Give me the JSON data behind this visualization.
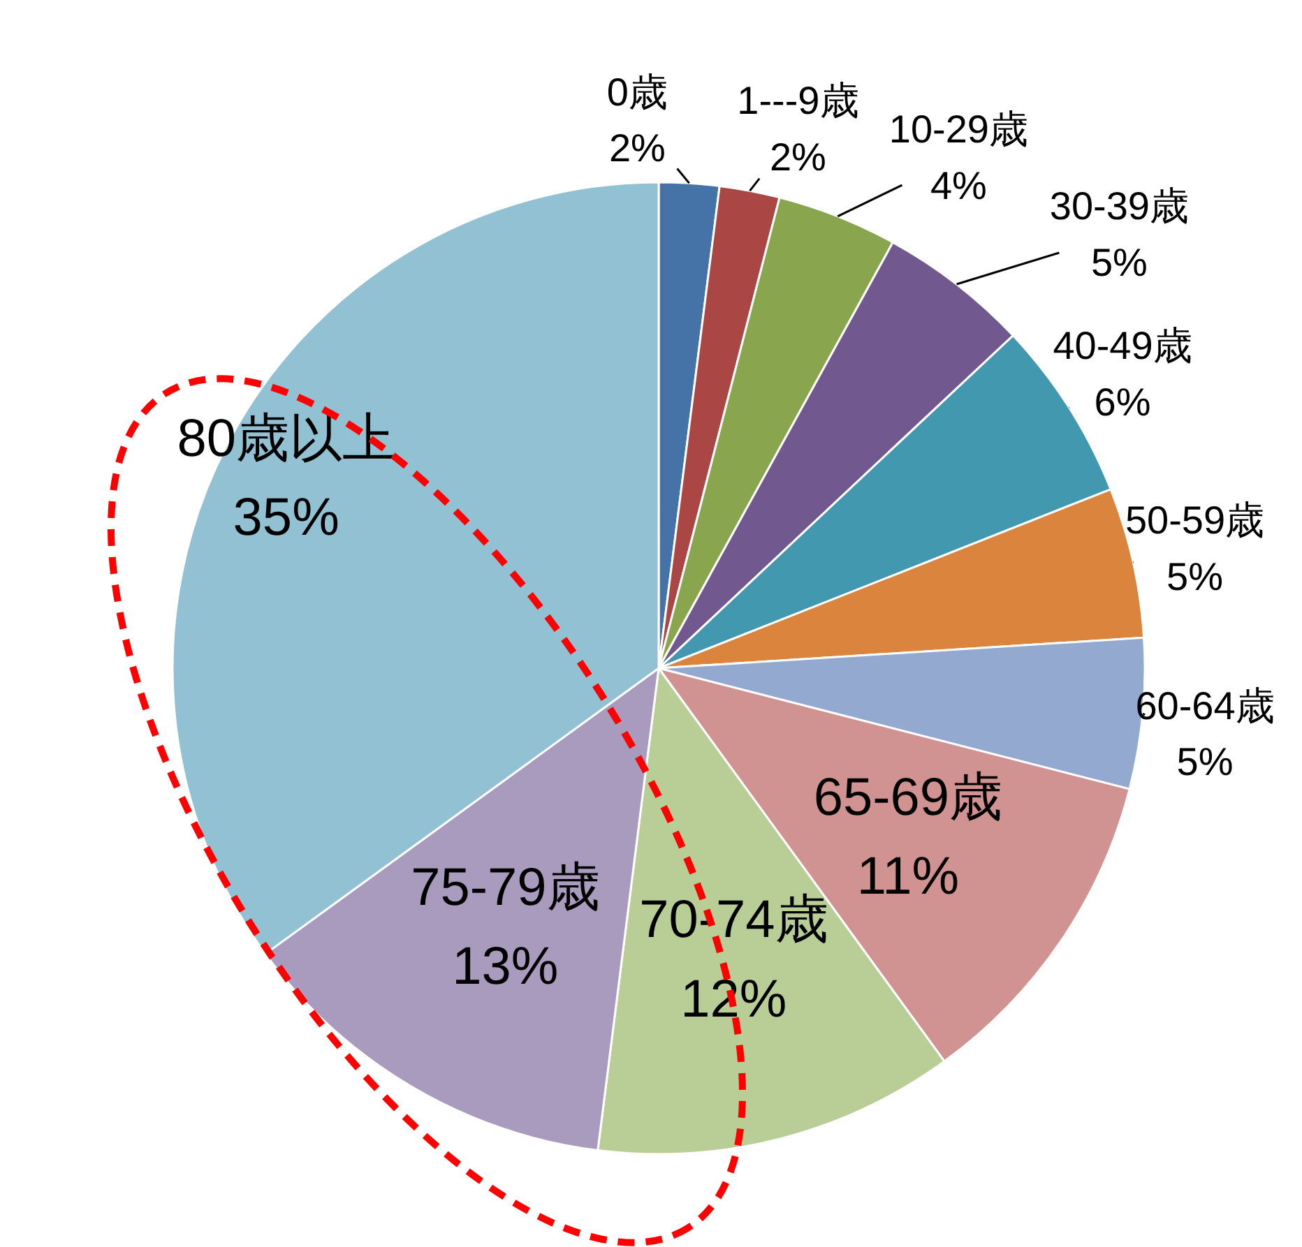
{
  "chart_data": {
    "type": "pie",
    "categories": [
      "0歳",
      "1---9歳",
      "10-29歳",
      "30-39歳",
      "40-49歳",
      "50-59歳",
      "60-64歳",
      "65-69歳",
      "70-74歳",
      "75-79歳",
      "80歳以上"
    ],
    "values": [
      2,
      2,
      4,
      5,
      6,
      5,
      5,
      11,
      12,
      13,
      35
    ],
    "colors": [
      "#4572a7",
      "#aa4643",
      "#89a54e",
      "#71588f",
      "#4198af",
      "#db843d",
      "#93a9cf",
      "#d19392",
      "#b9cd96",
      "#a99bbd",
      "#92c1d3"
    ],
    "value_labels": [
      "2%",
      "2%",
      "4%",
      "5%",
      "6%",
      "5%",
      "5%",
      "11%",
      "12%",
      "13%",
      "35%"
    ]
  }
}
